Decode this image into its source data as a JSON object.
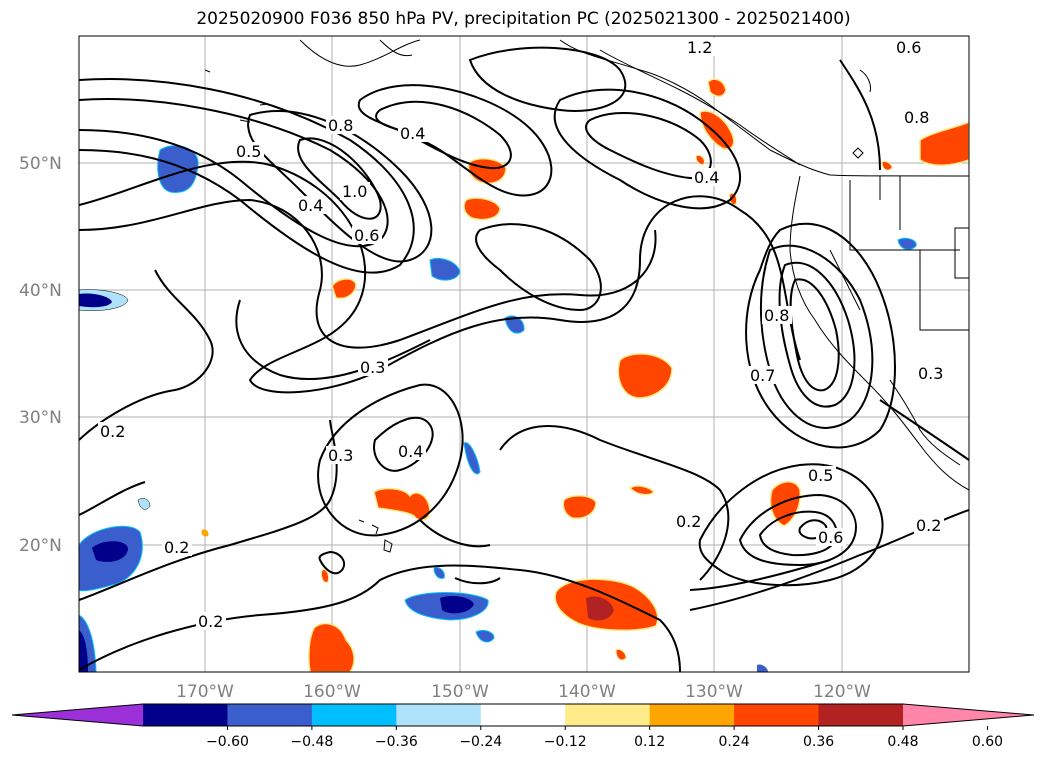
{
  "title": "2025020900 F036 850 hPa PV, precipitation PC (2025021300 - 2025021400)",
  "lat_labels": [
    "50°N",
    "40°N",
    "30°N",
    "20°N"
  ],
  "lon_labels": [
    "170°W",
    "160°W",
    "150°W",
    "140°W",
    "130°W",
    "120°W"
  ],
  "colorbar": {
    "colors": [
      "#9b30d9",
      "#00008b",
      "#3a5fcd",
      "#00bfff",
      "#ade2fa",
      "#ffffff",
      "#ffeb8a",
      "#ffa500",
      "#ff4500",
      "#b22222",
      "#ff85a9"
    ],
    "tick_labels": [
      "−0.60",
      "−0.48",
      "−0.36",
      "−0.24",
      "−0.12",
      "0.12",
      "0.24",
      "0.36",
      "0.48",
      "0.60"
    ]
  },
  "contour_labels": [
    "0.8",
    "0.4",
    "1.0",
    "0.6",
    "0.5",
    "0.4",
    "1.2",
    "0.6",
    "0.8",
    "0.4",
    "0.8",
    "0.3",
    "0.7",
    "0.2",
    "0.3",
    "0.4",
    "0.2",
    "0.2",
    "0.5",
    "0.6",
    "0.2",
    "0.2",
    "0.3"
  ]
}
